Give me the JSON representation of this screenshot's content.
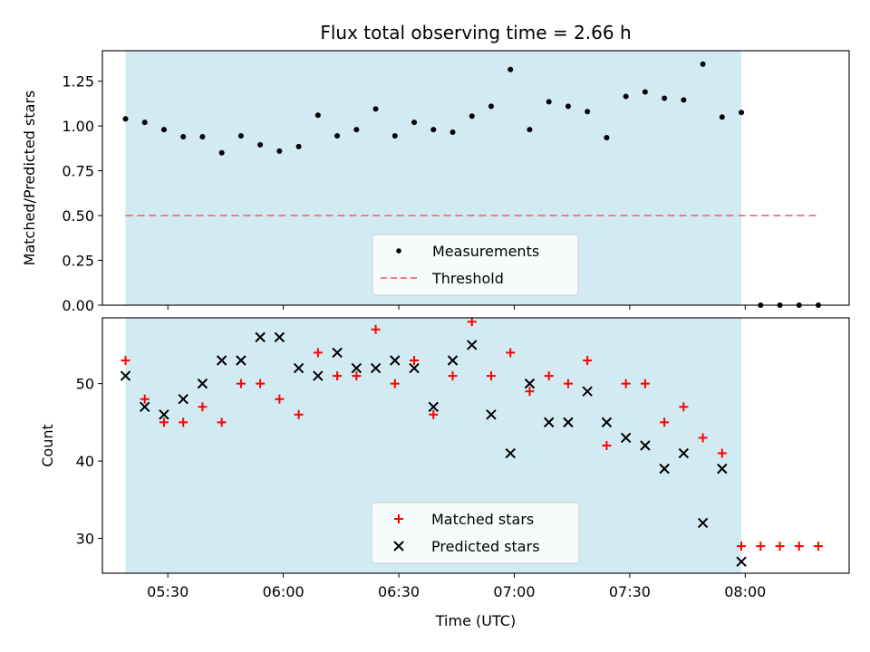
{
  "chart_data": {
    "title": "Flux total observing time = 2.66 h",
    "xlabel": "Time (UTC)",
    "x_unit": "hh:mm UTC",
    "xlim": [
      "05:13",
      "08:27"
    ],
    "xticks": [
      "05:30",
      "06:00",
      "06:30",
      "07:00",
      "07:30",
      "08:00"
    ],
    "shaded_span": [
      "05:19",
      "07:59"
    ],
    "shade_color": "#add8e6",
    "panels": [
      {
        "type": "scatter",
        "ylabel": "Matched/Predicted stars",
        "ylim": [
          0,
          1.42
        ],
        "yticks": [
          "0.00",
          "0.25",
          "0.50",
          "0.75",
          "1.00",
          "1.25"
        ],
        "threshold": {
          "y": 0.5,
          "x_range": [
            "05:19",
            "08:19"
          ],
          "color": "#f08080"
        },
        "series": [
          {
            "name": "Measurements",
            "marker": "dot",
            "color": "#000000",
            "x": [
              "05:19",
              "05:24",
              "05:29",
              "05:34",
              "05:39",
              "05:44",
              "05:49",
              "05:54",
              "05:59",
              "06:04",
              "06:09",
              "06:14",
              "06:19",
              "06:24",
              "06:29",
              "06:34",
              "06:39",
              "06:44",
              "06:49",
              "06:54",
              "06:59",
              "07:04",
              "07:09",
              "07:14",
              "07:19",
              "07:24",
              "07:29",
              "07:34",
              "07:39",
              "07:44",
              "07:49",
              "07:54",
              "07:59",
              "08:04",
              "08:09",
              "08:14",
              "08:19"
            ],
            "y": [
              1.04,
              1.02,
              0.98,
              0.94,
              0.94,
              0.85,
              0.945,
              0.895,
              0.86,
              0.885,
              1.06,
              0.945,
              0.98,
              1.095,
              0.945,
              1.02,
              0.98,
              0.965,
              1.055,
              1.11,
              1.315,
              0.98,
              1.135,
              1.11,
              1.08,
              0.935,
              1.165,
              1.19,
              1.155,
              1.145,
              1.345,
              1.05,
              1.075,
              0,
              0,
              0,
              0
            ]
          }
        ],
        "legend": [
          "Measurements",
          "Threshold"
        ]
      },
      {
        "type": "scatter",
        "ylabel": "Count",
        "ylim": [
          25.5,
          58.5
        ],
        "yticks": [
          "30",
          "40",
          "50"
        ],
        "series": [
          {
            "name": "Matched stars",
            "marker": "plus",
            "color": "#ff0000",
            "x": [
              "05:19",
              "05:24",
              "05:29",
              "05:34",
              "05:39",
              "05:44",
              "05:49",
              "05:54",
              "05:59",
              "06:04",
              "06:09",
              "06:14",
              "06:19",
              "06:24",
              "06:29",
              "06:34",
              "06:39",
              "06:44",
              "06:49",
              "06:54",
              "06:59",
              "07:04",
              "07:09",
              "07:14",
              "07:19",
              "07:24",
              "07:29",
              "07:34",
              "07:39",
              "07:44",
              "07:49",
              "07:54",
              "07:59",
              "08:04",
              "08:09",
              "08:14",
              "08:19"
            ],
            "y": [
              53,
              48,
              45,
              45,
              47,
              45,
              50,
              50,
              48,
              46,
              54,
              51,
              51,
              57,
              50,
              53,
              46,
              51,
              58,
              51,
              54,
              49,
              51,
              50,
              53,
              42,
              50,
              50,
              45,
              47,
              43,
              41,
              29,
              29,
              29,
              29,
              29
            ]
          },
          {
            "name": "Predicted stars",
            "marker": "x",
            "color": "#000000",
            "x": [
              "05:19",
              "05:24",
              "05:29",
              "05:34",
              "05:39",
              "05:44",
              "05:49",
              "05:54",
              "05:59",
              "06:04",
              "06:09",
              "06:14",
              "06:19",
              "06:24",
              "06:29",
              "06:34",
              "06:39",
              "06:44",
              "06:49",
              "06:54",
              "06:59",
              "07:04",
              "07:09",
              "07:14",
              "07:19",
              "07:24",
              "07:29",
              "07:34",
              "07:39",
              "07:44",
              "07:49",
              "07:54",
              "07:59"
            ],
            "y": [
              51,
              47,
              46,
              48,
              50,
              53,
              53,
              56,
              56,
              52,
              51,
              54,
              52,
              52,
              53,
              52,
              47,
              53,
              55,
              46,
              41,
              50,
              45,
              45,
              49,
              45,
              43,
              42,
              39,
              41,
              32,
              39,
              27
            ]
          }
        ],
        "legend": [
          "Matched stars",
          "Predicted stars"
        ]
      }
    ]
  }
}
